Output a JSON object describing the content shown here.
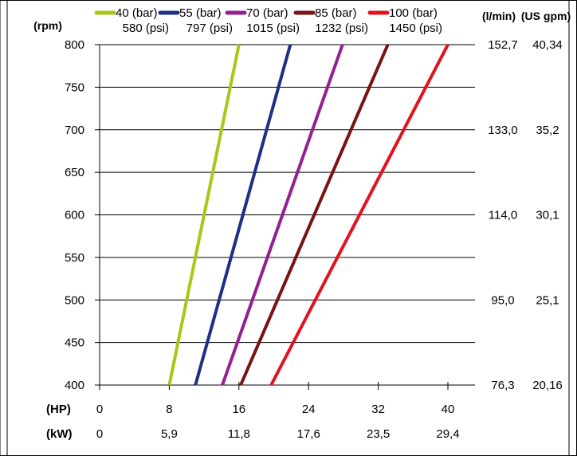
{
  "chart_data": {
    "type": "line",
    "y_axis": {
      "label": "(rpm)",
      "ticks": [
        400,
        450,
        500,
        550,
        600,
        650,
        700,
        750,
        800
      ],
      "range": [
        400,
        800
      ],
      "grid": true
    },
    "x_axis": {
      "label_hp": "(HP)",
      "label_kw": "(kW)",
      "range": [
        0,
        40
      ],
      "hp_ticks": [
        "0",
        "8",
        "16",
        "24",
        "32",
        "40"
      ],
      "kw_ticks": [
        "0",
        "5,9",
        "11,8",
        "17,6",
        "23,5",
        "29,4"
      ]
    },
    "flow_axis": {
      "label_lmin": "(l/min)",
      "label_gpm": "(US gpm)",
      "rows": [
        {
          "rpm": 800,
          "lmin": "152,7",
          "gpm": "40,34"
        },
        {
          "rpm": 700,
          "lmin": "133,0",
          "gpm": "35,2"
        },
        {
          "rpm": 600,
          "lmin": "114,0",
          "gpm": "30,1"
        },
        {
          "rpm": 500,
          "lmin": "95,0",
          "gpm": "25,1"
        },
        {
          "rpm": 400,
          "lmin": "76,3",
          "gpm": "20,16"
        }
      ]
    },
    "legend_position": "top",
    "series": [
      {
        "name": "40 (bar)",
        "sub": "580 (psi)",
        "color": "#a6c817",
        "points": [
          [
            8,
            400
          ],
          [
            16,
            800
          ]
        ]
      },
      {
        "name": "55 (bar)",
        "sub": "797 (psi)",
        "color": "#1f2f86",
        "points": [
          [
            11,
            400
          ],
          [
            21.9,
            800
          ]
        ]
      },
      {
        "name": "70 (bar)",
        "sub": "1015 (psi)",
        "color": "#93208f",
        "points": [
          [
            14.1,
            400
          ],
          [
            27.9,
            800
          ]
        ]
      },
      {
        "name": "85 (bar)",
        "sub": "1232 (psi)",
        "color": "#7a1212",
        "points": [
          [
            16.2,
            400
          ],
          [
            33.1,
            800
          ]
        ]
      },
      {
        "name": "100 (bar)",
        "sub": "1450 (psi)",
        "color": "#e3111d",
        "points": [
          [
            19.7,
            400
          ],
          [
            40,
            800
          ]
        ]
      }
    ]
  }
}
